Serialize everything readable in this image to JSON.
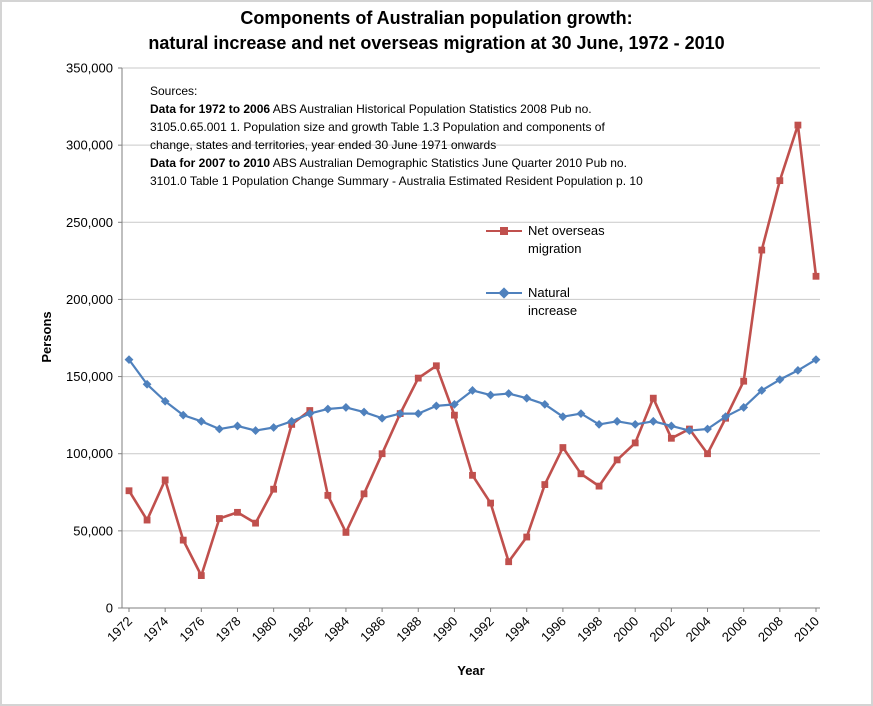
{
  "chart_data": {
    "type": "line",
    "title_lines": [
      "Components of Australian population growth:",
      "natural increase and net overseas migration at 30 June, 1972 - 2010"
    ],
    "xlabel": "Year",
    "ylabel": "Persons",
    "grid": "horizontal",
    "legend_position": "inside-right",
    "x": [
      1972,
      1973,
      1974,
      1975,
      1976,
      1977,
      1978,
      1979,
      1980,
      1981,
      1982,
      1983,
      1984,
      1985,
      1986,
      1987,
      1988,
      1989,
      1990,
      1991,
      1992,
      1993,
      1994,
      1995,
      1996,
      1997,
      1998,
      1999,
      2000,
      2001,
      2002,
      2003,
      2004,
      2005,
      2006,
      2007,
      2008,
      2009,
      2010
    ],
    "x_tick_labels": [
      "1972",
      "1974",
      "1976",
      "1978",
      "1980",
      "1982",
      "1984",
      "1986",
      "1988",
      "1990",
      "1992",
      "1994",
      "1996",
      "1998",
      "2000",
      "2002",
      "2004",
      "2006",
      "2008",
      "2010"
    ],
    "ylim": [
      0,
      350000
    ],
    "y_tick_labels": [
      "0",
      "50,000",
      "100,000",
      "150,000",
      "200,000",
      "250,000",
      "300,000",
      "350,000"
    ],
    "series": [
      {
        "name": "Net overseas migration",
        "color": "#C0504D",
        "marker": "square",
        "values": [
          76000,
          57000,
          83000,
          44000,
          21000,
          58000,
          62000,
          55000,
          77000,
          119000,
          128000,
          73000,
          49000,
          74000,
          100000,
          126000,
          149000,
          157000,
          125000,
          86000,
          68000,
          30000,
          46000,
          80000,
          104000,
          87000,
          79000,
          96000,
          107000,
          136000,
          110000,
          116000,
          100000,
          123000,
          147000,
          232000,
          277000,
          313000,
          215000
        ]
      },
      {
        "name": "Natural increase",
        "color": "#4F81BD",
        "marker": "diamond",
        "values": [
          161000,
          145000,
          134000,
          125000,
          121000,
          116000,
          118000,
          115000,
          117000,
          121000,
          126000,
          129000,
          130000,
          127000,
          123000,
          126000,
          126000,
          131000,
          132000,
          141000,
          138000,
          139000,
          136000,
          132000,
          124000,
          126000,
          119000,
          121000,
          119000,
          121000,
          118000,
          115000,
          116000,
          124000,
          130000,
          141000,
          148000,
          154000,
          161000
        ]
      }
    ],
    "legend": {
      "entries": [
        {
          "line1": "Net overseas",
          "line2": "migration"
        },
        {
          "line1": "Natural",
          "line2": "increase"
        }
      ]
    }
  },
  "sources": {
    "heading": "Sources:",
    "lines": [
      {
        "bold": "Data for 1972 to 2006",
        "rest": " ABS Australian Historical Population Statistics 2008 Pub no."
      },
      {
        "bold": "",
        "rest": "3105.0.65.001 1. Population size and growth Table 1.3 Population and components of"
      },
      {
        "bold": "",
        "rest": "change, states and territories, year ended 30 June 1971 onwards"
      },
      {
        "bold": "Data for 2007 to 2010",
        "rest": " ABS Australian Demographic Statistics June Quarter 2010 Pub no."
      },
      {
        "bold": "",
        "rest": "3101.0 Table 1 Population Change Summary - Australia Estimated Resident Population p. 10"
      }
    ]
  }
}
